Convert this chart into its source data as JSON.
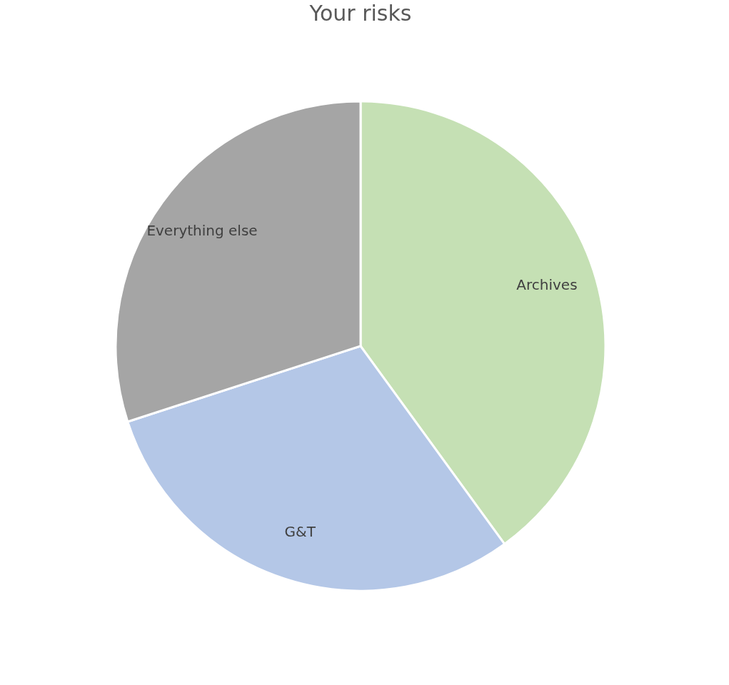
{
  "chart_data": {
    "type": "pie",
    "title": "Your risks",
    "categories": [
      "Archives",
      "G&T",
      "Everything else"
    ],
    "values": [
      40,
      30,
      30
    ],
    "colors": [
      "#c5e0b4",
      "#b4c7e7",
      "#a5a5a5"
    ],
    "legend": false
  }
}
